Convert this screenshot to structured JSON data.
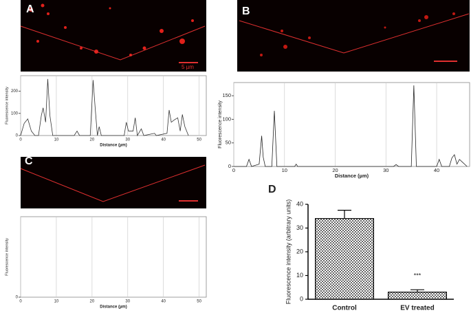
{
  "panel_labels": [
    "A",
    "B",
    "C",
    "D"
  ],
  "scale_bar_label": "5 µm",
  "chart_data": [
    {
      "type": "line",
      "x_label": "Distance (µm)",
      "y_label": "Fluorescence intensity",
      "x": [
        0,
        1,
        2,
        3,
        4,
        5,
        5.8,
        6.3,
        7,
        7.6,
        8.2,
        9,
        15,
        15.8,
        16.5,
        19.5,
        20.3,
        20.9,
        21.5,
        22,
        22.6,
        29,
        29.6,
        30.2,
        31.5,
        32.1,
        32.7,
        33.8,
        34.5,
        37.5,
        38,
        41,
        41.6,
        42.2,
        43,
        44,
        44.7,
        45.3,
        46,
        47
      ],
      "values": [
        0,
        55,
        75,
        20,
        0,
        0,
        90,
        125,
        60,
        255,
        90,
        0,
        0,
        20,
        0,
        0,
        250,
        120,
        0,
        40,
        0,
        0,
        60,
        20,
        20,
        80,
        0,
        30,
        0,
        10,
        0,
        10,
        115,
        60,
        70,
        80,
        20,
        95,
        40,
        0
      ],
      "color": "#333333",
      "xlim": [
        0,
        52
      ],
      "ylim": [
        0,
        270
      ],
      "xticks": [
        0,
        10,
        20,
        30,
        40,
        50
      ],
      "yticks": [
        0,
        100,
        200
      ],
      "grid": true
    },
    {
      "type": "line",
      "x_label": "Distance (µm)",
      "y_label": "Fluorescence intensity",
      "x": [
        0,
        2.5,
        3,
        3.5,
        5,
        5.5,
        5.8,
        6.2,
        7.5,
        8,
        8.5,
        12,
        12.3,
        12.6,
        31.5,
        32,
        32.5,
        35,
        35.5,
        36,
        40,
        40.5,
        41,
        42.5,
        43,
        43.5,
        44,
        44.5,
        45,
        46
      ],
      "values": [
        0,
        0,
        15,
        0,
        5,
        65,
        20,
        0,
        0,
        118,
        0,
        0,
        5,
        0,
        0,
        4,
        0,
        0,
        172,
        0,
        0,
        15,
        0,
        0,
        18,
        25,
        5,
        15,
        10,
        0
      ],
      "color": "#222222",
      "xlim": [
        0,
        46.5
      ],
      "ylim": [
        0,
        178
      ],
      "xticks": [
        0,
        10,
        20,
        30,
        40
      ],
      "yticks": [
        0,
        50,
        100,
        150
      ],
      "grid": true
    },
    {
      "type": "empty",
      "x_label": "Distance (µm)",
      "y_label": "Fluorescence intensity",
      "xlim": [
        0,
        52
      ],
      "ylim": [
        0,
        270
      ],
      "xticks": [
        0,
        10,
        20,
        30,
        40,
        50
      ],
      "yticks": [
        0
      ],
      "grid": true
    },
    {
      "type": "bar",
      "y_label": "Fluorescence intensity (arbitrary units)",
      "categories": [
        "Control",
        "EV treated"
      ],
      "values": [
        34,
        3
      ],
      "errors": [
        3.5,
        1
      ],
      "annotations": [
        "***"
      ],
      "color": "#999999",
      "ylim": [
        0,
        40
      ],
      "yticks": [
        0,
        10,
        20,
        30,
        40
      ]
    }
  ]
}
